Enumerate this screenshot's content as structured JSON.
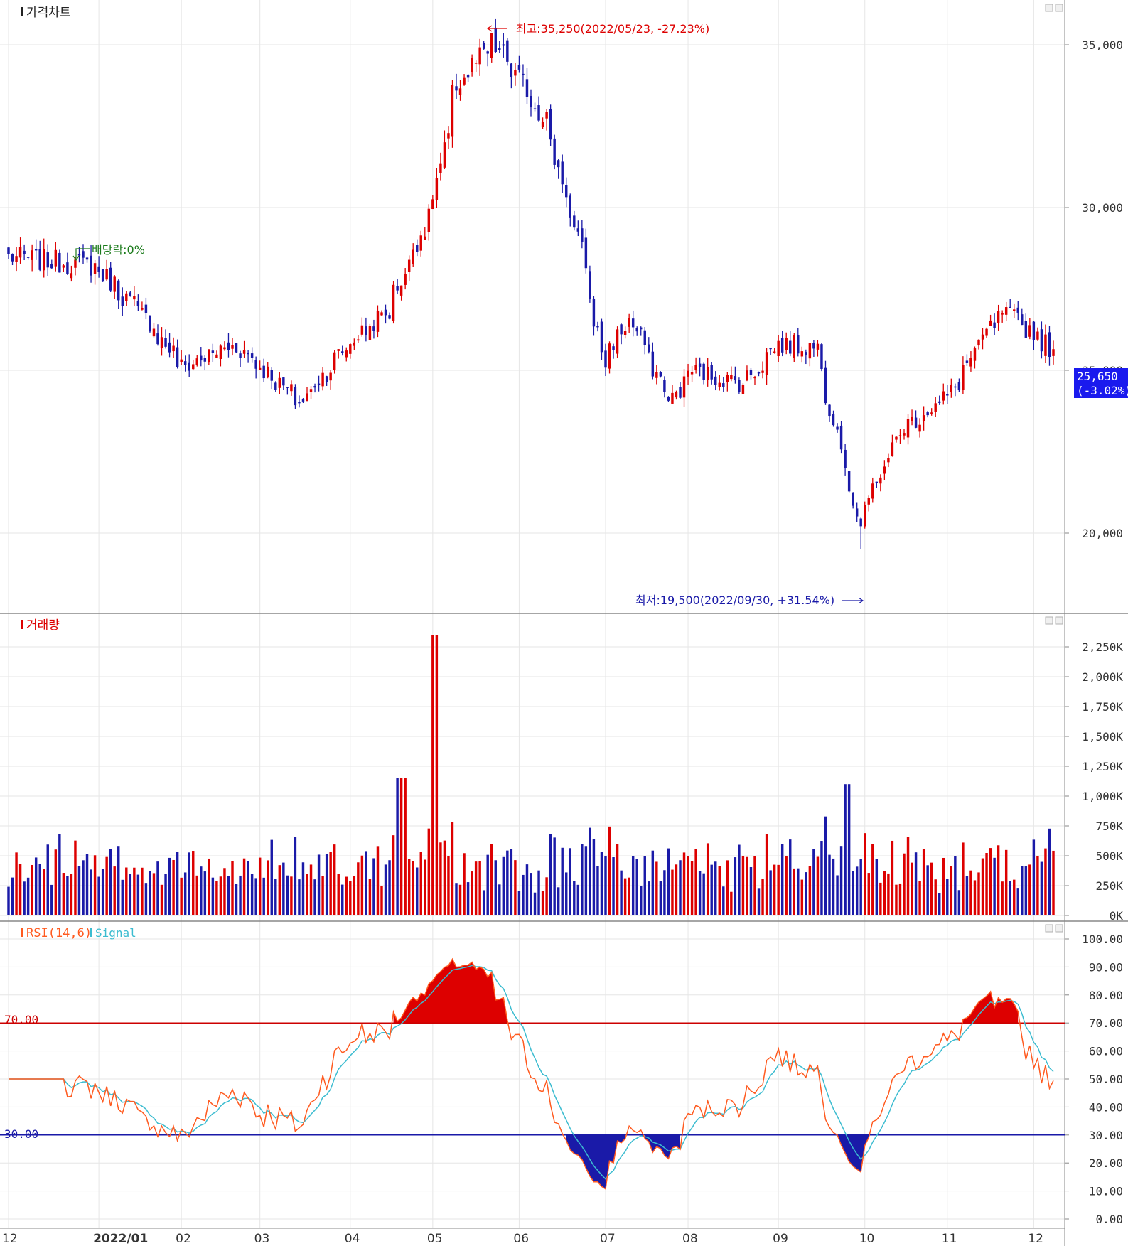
{
  "panels": {
    "price": {
      "title": "가격차트"
    },
    "volume": {
      "title": "거래량"
    },
    "rsi": {
      "title": "RSI(14,6)",
      "signal": "Signal"
    }
  },
  "colors": {
    "up": "#dd0000",
    "down": "#1a1aa8",
    "rsi": "#ff5a1f",
    "signal": "#3cbcd0",
    "line70": "#cc0000",
    "line30": "#1a1aa8",
    "grid": "#e6e6e6"
  },
  "annotations": {
    "high": "최고:35,250(2022/05/23, -27.23%)",
    "low": "최저:19,500(2022/09/30, +31.54%)",
    "dividend": "배당락:0%",
    "last_price": "25,650",
    "last_change": "(-3.02%)",
    "rsi_upper": "70.00",
    "rsi_lower": "30.00"
  },
  "chart_data": [
    {
      "type": "candlestick",
      "title": "가격차트",
      "y_ticks": [
        "35,000",
        "30,000",
        "25,000",
        "20,000"
      ],
      "ylim": [
        19000,
        36200
      ],
      "x_ticks": [
        "12",
        "2022/01",
        "02",
        "03",
        "04",
        "05",
        "06",
        "07",
        "08",
        "09",
        "10",
        "11",
        "12"
      ],
      "close_anchors": [
        {
          "date": "2021/12",
          "close": 28500
        },
        {
          "date": "2022/01",
          "close": 28200
        },
        {
          "date": "2022/01/20",
          "close": 26500
        },
        {
          "date": "2022/02",
          "close": 25100
        },
        {
          "date": "2022/02/20",
          "close": 25800
        },
        {
          "date": "2022/03",
          "close": 25100
        },
        {
          "date": "2022/03/15",
          "close": 24000
        },
        {
          "date": "2022/04",
          "close": 25800
        },
        {
          "date": "2022/04/15",
          "close": 26800
        },
        {
          "date": "2022/05",
          "close": 30000
        },
        {
          "date": "2022/05/10",
          "close": 33800
        },
        {
          "date": "2022/05/23",
          "close": 35000
        },
        {
          "date": "2022/06/10",
          "close": 32800
        },
        {
          "date": "2022/06/25",
          "close": 28000
        },
        {
          "date": "2022/07",
          "close": 25200
        },
        {
          "date": "2022/07/10",
          "close": 26700
        },
        {
          "date": "2022/07/25",
          "close": 24000
        },
        {
          "date": "2022/08",
          "close": 25000
        },
        {
          "date": "2022/08/20",
          "close": 24600
        },
        {
          "date": "2022/09",
          "close": 25800
        },
        {
          "date": "2022/09/15",
          "close": 25700
        },
        {
          "date": "2022/09/30",
          "close": 20300
        },
        {
          "date": "2022/10/15",
          "close": 23200
        },
        {
          "date": "2022/11",
          "close": 24200
        },
        {
          "date": "2022/11/10",
          "close": 25500
        },
        {
          "date": "2022/11/20",
          "close": 26800
        },
        {
          "date": "2022/12",
          "close": 26200
        },
        {
          "date": "2022/12/08",
          "close": 25650
        }
      ],
      "high": {
        "date": "2022/05/23",
        "value": 35250
      },
      "low": {
        "date": "2022/09/30",
        "value": 19500
      },
      "last": {
        "close": 25650,
        "change_pct": -3.02
      }
    },
    {
      "type": "bar",
      "title": "거래량",
      "y_ticks": [
        "2,250K",
        "2,000K",
        "1,750K",
        "1,500K",
        "1,250K",
        "1,000K",
        "750K",
        "500K",
        "250K",
        "0K"
      ],
      "ylim": [
        0,
        2250000
      ],
      "peaks": [
        {
          "date": "2022/04/20",
          "value": 1150000
        },
        {
          "date": "2022/05/02",
          "value": 2350000
        },
        {
          "date": "2022/09/26",
          "value": 1100000
        }
      ]
    },
    {
      "type": "line",
      "title": "RSI(14,6)",
      "series": [
        {
          "name": "RSI(14,6)"
        },
        {
          "name": "Signal"
        }
      ],
      "y_ticks": [
        "100.00",
        "90.00",
        "80.00",
        "70.00",
        "60.00",
        "50.00",
        "40.00",
        "30.00",
        "20.00",
        "10.00",
        "0.00"
      ],
      "ylim": [
        0,
        100
      ],
      "levels": [
        70,
        30
      ]
    }
  ]
}
